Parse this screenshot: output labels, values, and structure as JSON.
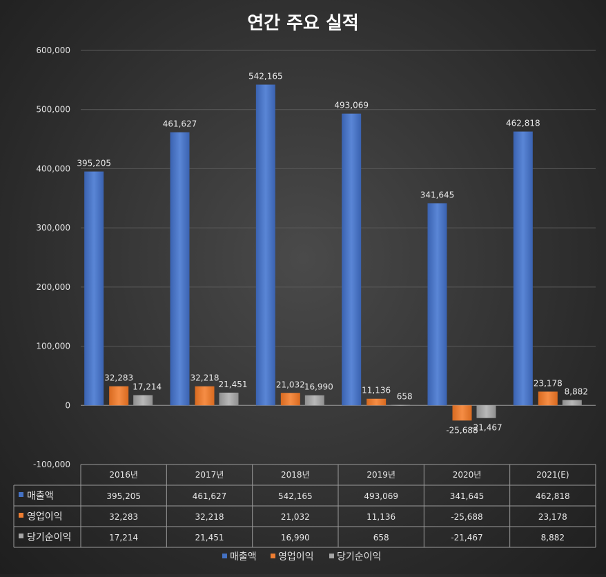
{
  "chart_data": {
    "type": "bar",
    "title": "연간 주요 실적",
    "categories": [
      "2016년",
      "2017년",
      "2018년",
      "2019년",
      "2020년",
      "2021(E)"
    ],
    "series": [
      {
        "name": "매출액",
        "color": "#4472c4",
        "values": [
          395205,
          461627,
          542165,
          493069,
          341645,
          462818
        ]
      },
      {
        "name": "영업이익",
        "color": "#ed7d31",
        "values": [
          32283,
          32218,
          21032,
          11136,
          -25688,
          23178
        ]
      },
      {
        "name": "당기순이익",
        "color": "#a5a5a5",
        "values": [
          17214,
          21451,
          16990,
          658,
          -21467,
          8882
        ]
      }
    ],
    "ylim": [
      -100000,
      600000
    ],
    "yticks": [
      -100000,
      0,
      100000,
      200000,
      300000,
      400000,
      500000,
      600000
    ],
    "ytick_labels": [
      "-100,000",
      "0",
      "100,000",
      "200,000",
      "300,000",
      "400,000",
      "500,000",
      "600,000"
    ],
    "value_labels": [
      [
        "395,205",
        "461,627",
        "542,165",
        "493,069",
        "341,645",
        "462,818"
      ],
      [
        "32,283",
        "32,218",
        "21,032",
        "11,136",
        "-25,688",
        "23,178"
      ],
      [
        "17,214",
        "21,451",
        "16,990",
        "658",
        "-21,467",
        "8,882"
      ]
    ],
    "grid": true,
    "legend": "bottom",
    "data_table": true
  }
}
